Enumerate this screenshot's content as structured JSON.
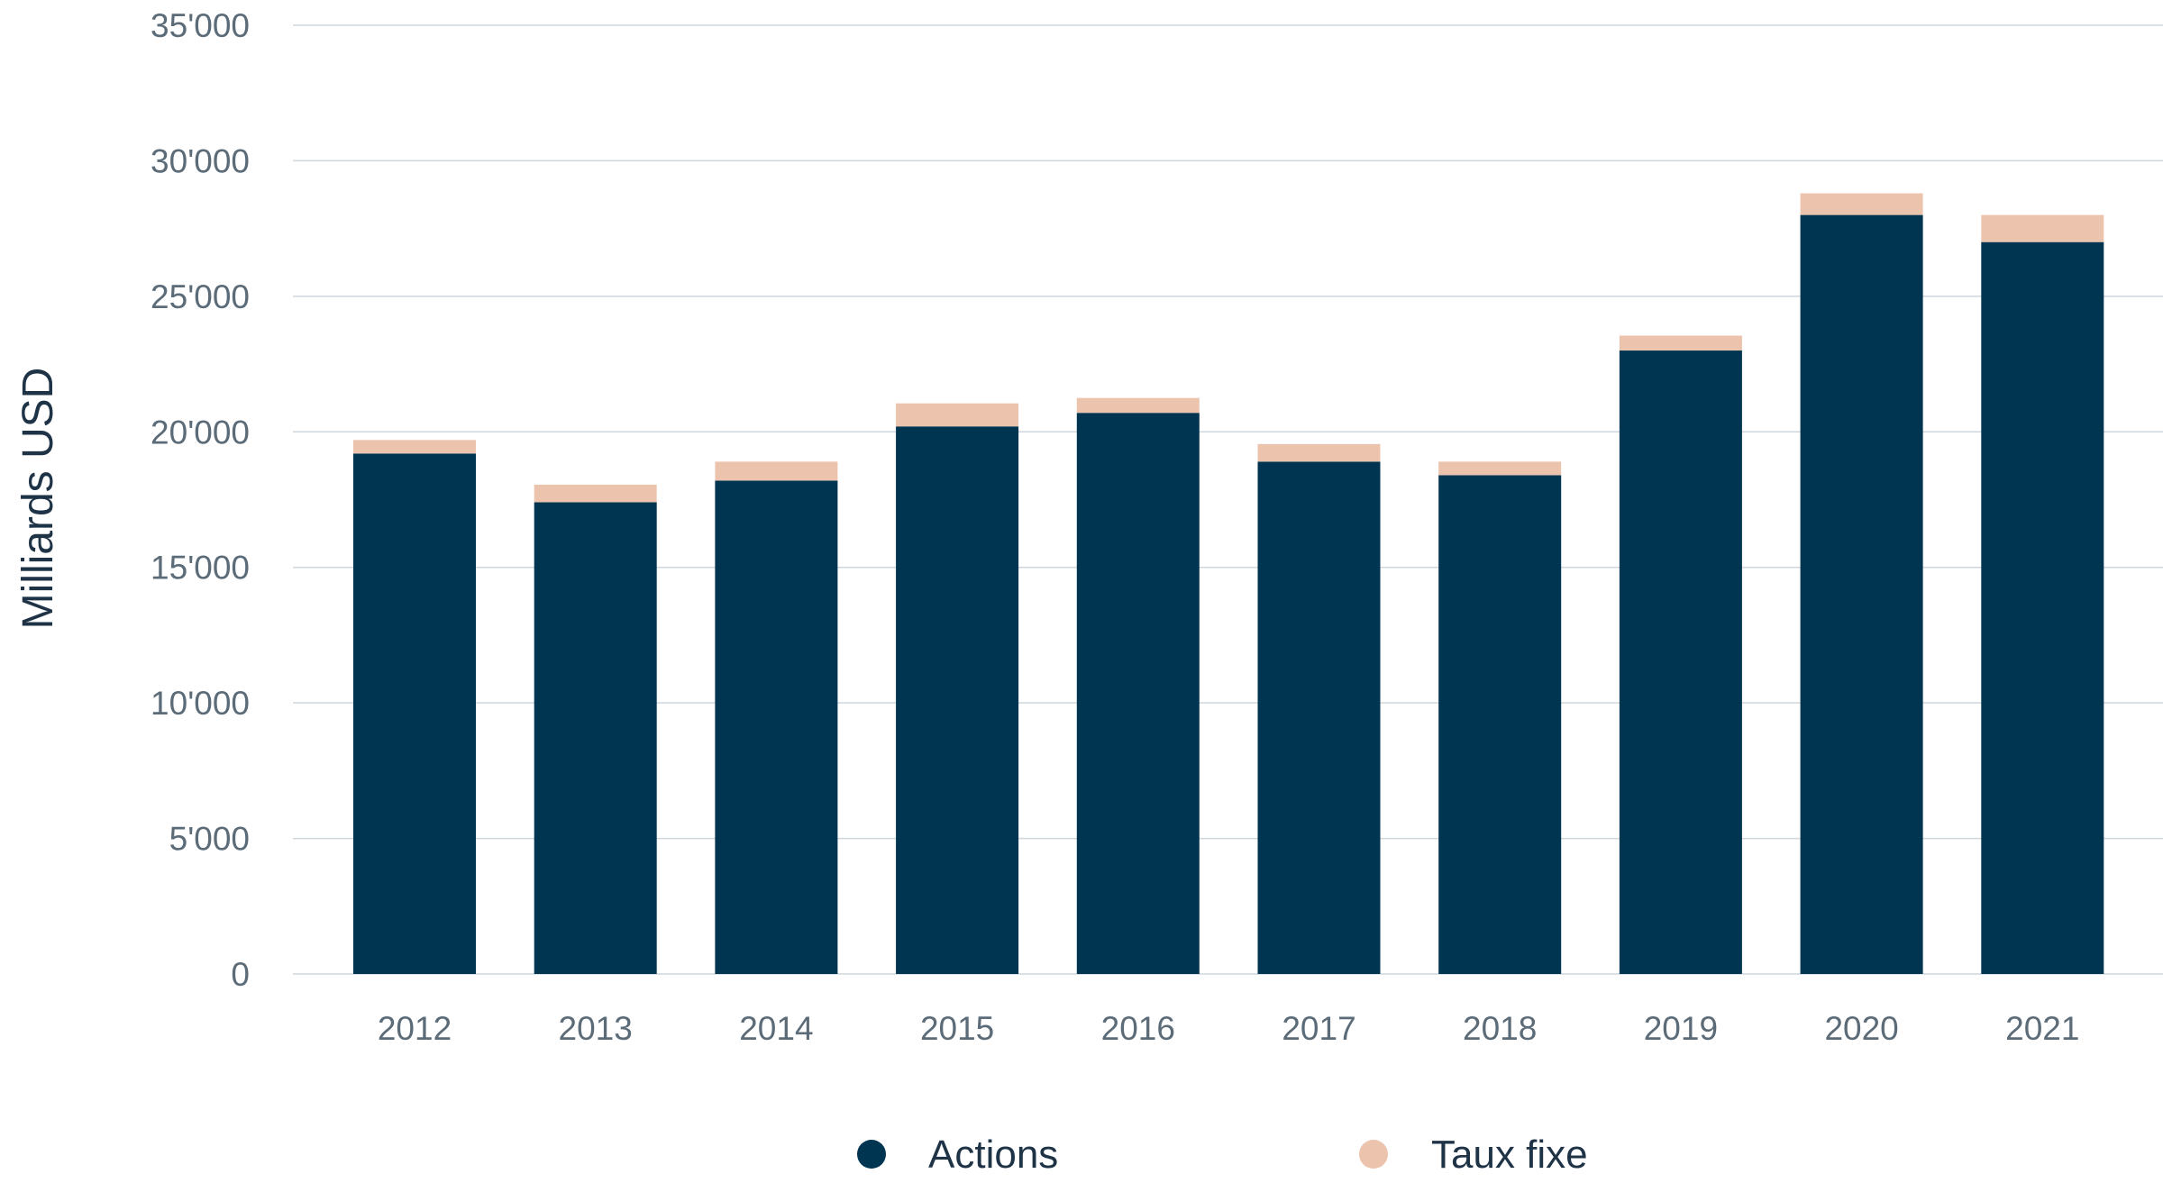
{
  "chart_data": {
    "type": "bar",
    "stacked": true,
    "categories": [
      "2012",
      "2013",
      "2014",
      "2015",
      "2016",
      "2017",
      "2018",
      "2019",
      "2020",
      "2021"
    ],
    "series": [
      {
        "name": "Actions",
        "color": "#003552",
        "values": [
          19200,
          17400,
          18200,
          20200,
          20700,
          18900,
          18400,
          23000,
          28000,
          27000
        ]
      },
      {
        "name": "Taux fixe",
        "color": "#ecc4ad",
        "values": [
          500,
          650,
          700,
          850,
          550,
          650,
          500,
          550,
          800,
          1000
        ]
      }
    ],
    "xlabel": "",
    "ylabel": "Milliards USD",
    "ylim": [
      0,
      35000
    ],
    "yticks": [
      "0",
      "5'000",
      "10'000",
      "15'000",
      "20'000",
      "25'000",
      "30'000",
      "35'000"
    ],
    "ytick_values": [
      0,
      5000,
      10000,
      15000,
      20000,
      25000,
      30000,
      35000
    ],
    "grid": true,
    "legend_position": "bottom-center"
  }
}
